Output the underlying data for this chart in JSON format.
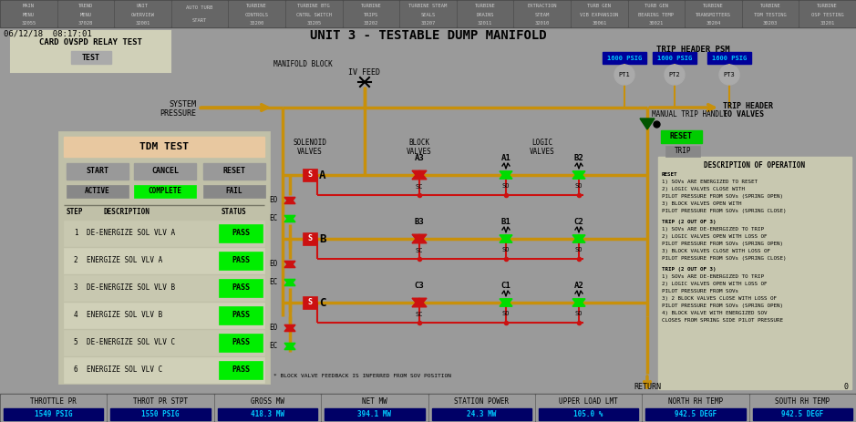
{
  "title": "UNIT 3 - TESTABLE DUMP MANIFOLD",
  "bg_color": "#9a9a9a",
  "date_time": "06/12/18  08:17:01",
  "nav_labels": [
    "MAIN\nMENU\n32055",
    "TREND\nMENU\n37028",
    "UNIT\nOVERVIEW\n32001",
    "AUTO TURB\nSTART",
    "TURBINE\nCONTROLS\n33200",
    "TURBINE BTG\nCNTRL SWITCH\n33205",
    "TURBINE\nTRIPS\n33202",
    "TURBINE STEAM\nSEALS\n33207",
    "TURBINE\nDRAINS\n32011",
    "EXTRACTION\nSTEAM\n32010",
    "TURB GEN\nVIB EXPANSION\n30061",
    "TURB GEN\nBEARING TEMP\n30021",
    "TURBINE\nTRANSMITTERS\n30204",
    "TURBINE\nTDM TESTING\n30203",
    "TURBINE\nOSP TESTING\n33201"
  ],
  "status_bar": [
    {
      "label": "THROTTLE PR",
      "value": "1549 PSIG"
    },
    {
      "label": "THROT PR STPT",
      "value": "1550 PSIG"
    },
    {
      "label": "GROSS MW",
      "value": "418.3 MW"
    },
    {
      "label": "NET MW",
      "value": "394.1 MW"
    },
    {
      "label": "STATION POWER",
      "value": "24.3 MW"
    },
    {
      "label": "UPPER LOAD LMT",
      "value": "105.0 %"
    },
    {
      "label": "NORTH RH TEMP",
      "value": "942.5 DEGF"
    },
    {
      "label": "SOUTH RH TEMP",
      "value": "942.5 DEGF"
    }
  ],
  "gold": "#c8900a",
  "red": "#cc1111",
  "green": "#00dd00",
  "dkgreen": "#005500",
  "black": "#000000",
  "white": "#ffffff",
  "nav_bg": "#4a4a4a",
  "nav_btn": "#666666",
  "panel_bg": "#b8b8a8",
  "panel_border": "#888877",
  "tdm_title_bg": "#e8c8a0",
  "btn_gray": "#888888",
  "row_bg1": "#c8c8b0",
  "row_bg2": "#d0d0b8",
  "desc_bg": "#c8c8b0",
  "psig_bg": "#000099",
  "psig_fg": "#00ccff",
  "val_bg": "#000066",
  "val_fg": "#00ccff",
  "sb_bg": "#555555"
}
